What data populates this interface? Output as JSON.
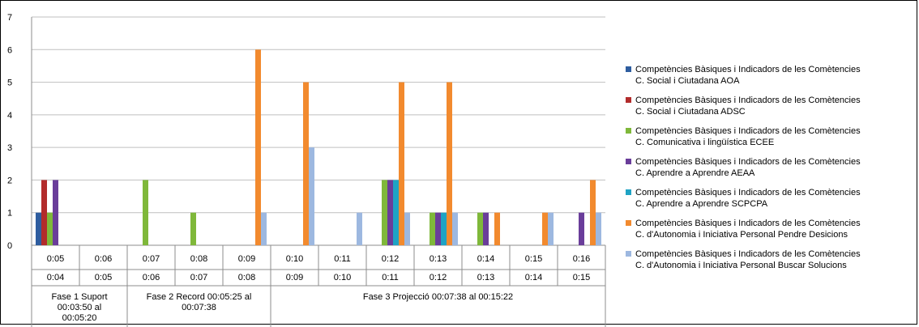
{
  "chart_data": {
    "type": "bar",
    "title": "",
    "ylim": [
      0,
      7
    ],
    "yticks": [
      "0",
      "1",
      "2",
      "3",
      "4",
      "5",
      "6",
      "7"
    ],
    "grid": true,
    "legend_position": "right",
    "categories": [
      "0:05",
      "0:06",
      "0:07",
      "0:08",
      "0:09",
      "0:10",
      "0:11",
      "0:12",
      "0:13",
      "0:14",
      "0:15",
      "0:16"
    ],
    "categories_row2": [
      "0:04",
      "0:05",
      "0:06",
      "0:07",
      "0:08",
      "0:09",
      "0:10",
      "0:11",
      "0:12",
      "0:13",
      "0:14",
      "0:15"
    ],
    "groups": [
      {
        "label": "Fase 1 Suport 00:03:50 al 00:05:20",
        "span": 2
      },
      {
        "label": "Fase 2 Record 00:05:25 al 00:07:38",
        "span": 3
      },
      {
        "label": "Fase 3 Projecció 00:07:38 al 00:15:22",
        "span": 7
      }
    ],
    "series": [
      {
        "name": "Competències Bàsiques i Indicadors de les Comètencies C. Social i Ciutadana AOA",
        "line1": "Competències Bàsiques i Indicadors de les Comètencies",
        "line2": "C. Social i Ciutadana AOA",
        "color": "#2e5d9f",
        "values": [
          1,
          0,
          0,
          0,
          0,
          0,
          0,
          0,
          0,
          0,
          0,
          0
        ]
      },
      {
        "name": "Competències Bàsiques i Indicadors de les Comètencies C. Social i Ciutadana ADSC",
        "line1": "Competències Bàsiques i Indicadors de les Comètencies",
        "line2": "C. Social i Ciutadana ADSC",
        "color": "#b22b2b",
        "values": [
          2,
          0,
          0,
          0,
          0,
          0,
          0,
          0,
          0,
          0,
          0,
          0
        ]
      },
      {
        "name": "Competències Bàsiques i Indicadors de les Comètencies C. Comunicativa i lingüística ECEE",
        "line1": "Competències Bàsiques i Indicadors de les Comètencies",
        "line2": "C. Comunicativa i lingüística ECEE",
        "color": "#7fb83a",
        "values": [
          1,
          0,
          2,
          1,
          0,
          0,
          0,
          2,
          1,
          1,
          0,
          0
        ]
      },
      {
        "name": "Competències Bàsiques i Indicadors de les Comètencies C. Aprendre a Aprendre AEAA",
        "line1": "Competències Bàsiques i Indicadors de les Comètencies",
        "line2": "C. Aprendre a Aprendre AEAA",
        "color": "#6a3d9a",
        "values": [
          2,
          0,
          0,
          0,
          0,
          0,
          0,
          2,
          1,
          1,
          0,
          1
        ]
      },
      {
        "name": "Competències Bàsiques i Indicadors de les Comètencies C. Aprendre a Aprendre SCPCPA",
        "line1": "Competències Bàsiques i Indicadors de les Comètencies",
        "line2": "C. Aprendre a Aprendre SCPCPA",
        "color": "#1fa3c4",
        "values": [
          0,
          0,
          0,
          0,
          0,
          0,
          0,
          2,
          1,
          0,
          0,
          0
        ]
      },
      {
        "name": "Competències Bàsiques i Indicadors de les Comètencies C. d'Autonomia i Iniciativa Personal Pendre Desicions",
        "line1": "Competències Bàsiques i Indicadors de les Comètencies",
        "line2": "C. d'Autonomia i Iniciativa Personal Pendre Desicions",
        "color": "#f28a2e",
        "values": [
          0,
          0,
          0,
          0,
          6,
          5,
          0,
          5,
          5,
          1,
          1,
          2
        ]
      },
      {
        "name": "Competències Bàsiques i Indicadors de les Comètencies C. d'Autonomia i Iniciativa Personal Buscar Solucions",
        "line1": "Competències Bàsiques i Indicadors de les Comètencies",
        "line2": "C. d'Autonomia i Iniciativa Personal Buscar Solucions",
        "color": "#9db8e0",
        "values": [
          0,
          0,
          0,
          0,
          1,
          3,
          1,
          1,
          1,
          0,
          1,
          1
        ]
      }
    ]
  }
}
